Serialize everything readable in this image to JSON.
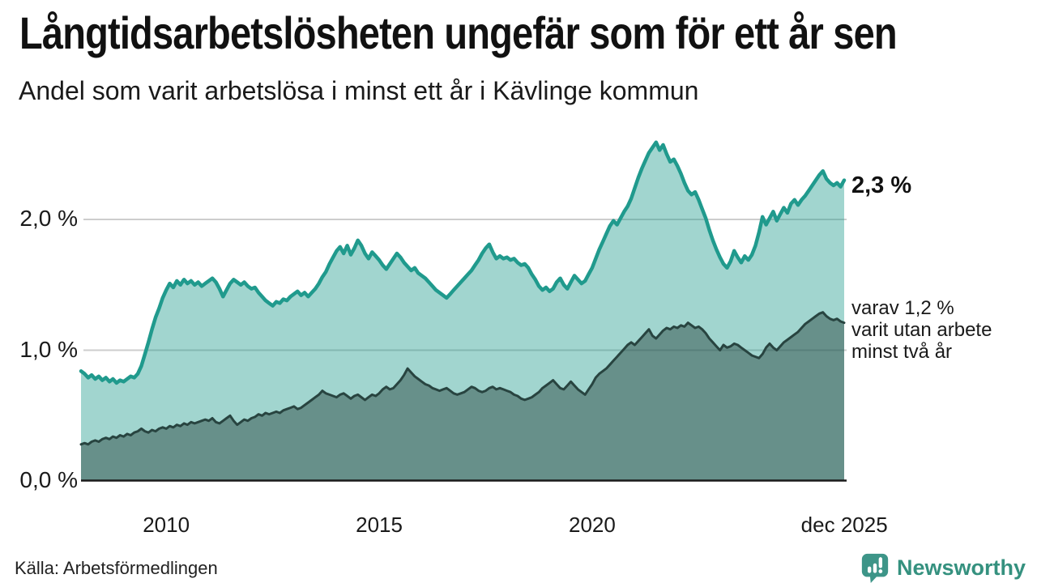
{
  "header": {
    "title": "Långtidsarbetslösheten ungefär som för ett år sen",
    "subtitle": "Andel som varit arbetslösa i minst ett år i Kävlinge kommun"
  },
  "chart_data": {
    "type": "area",
    "title": "Långtidsarbetslösheten ungefär som för ett år sen",
    "subtitle": "Andel som varit arbetslösa i minst ett år i Kävlinge kommun",
    "unit": "%",
    "xlabel": "",
    "ylabel": "",
    "grid": "horizontal",
    "x_start_year": 2008.0,
    "x_step_months": 1,
    "x_end_label": "dec 2025",
    "ylim": [
      0,
      2.7
    ],
    "y_ticks": [
      {
        "v": 0.0,
        "label": "0,0 %"
      },
      {
        "v": 1.0,
        "label": "1,0 %"
      },
      {
        "v": 2.0,
        "label": "2,0 %"
      }
    ],
    "x_ticks": [
      {
        "t": 2010.0,
        "label": "2010"
      },
      {
        "t": 2015.0,
        "label": "2015"
      },
      {
        "t": 2020.0,
        "label": "2020"
      },
      {
        "t": 2025.92,
        "label": "dec 2025"
      }
    ],
    "colors": {
      "total_line": "#209a8d",
      "total_fill": "rgba(32,154,141,0.42)",
      "twoyear_line": "#284440",
      "twoyear_fill": "rgba(38,66,62,0.47)",
      "grid": "#cdcdcd",
      "axis": "#1a1a1a"
    },
    "end_labels": {
      "total": "2,3 %",
      "subset_lines": [
        "varav 1,2 %",
        "varit utan arbete",
        "minst två år"
      ]
    },
    "series": [
      {
        "name": "Andel arbetslösa minst ett år",
        "end_value": 2.3,
        "values": [
          0.84,
          0.82,
          0.79,
          0.81,
          0.78,
          0.8,
          0.77,
          0.79,
          0.76,
          0.78,
          0.75,
          0.77,
          0.76,
          0.78,
          0.8,
          0.79,
          0.82,
          0.88,
          0.97,
          1.06,
          1.16,
          1.25,
          1.32,
          1.4,
          1.46,
          1.51,
          1.48,
          1.53,
          1.5,
          1.54,
          1.51,
          1.53,
          1.5,
          1.52,
          1.49,
          1.51,
          1.53,
          1.55,
          1.52,
          1.47,
          1.41,
          1.46,
          1.51,
          1.54,
          1.52,
          1.5,
          1.52,
          1.49,
          1.47,
          1.48,
          1.44,
          1.41,
          1.38,
          1.36,
          1.34,
          1.37,
          1.36,
          1.39,
          1.38,
          1.41,
          1.43,
          1.45,
          1.42,
          1.44,
          1.41,
          1.44,
          1.47,
          1.51,
          1.56,
          1.6,
          1.66,
          1.71,
          1.76,
          1.79,
          1.74,
          1.8,
          1.73,
          1.78,
          1.84,
          1.8,
          1.74,
          1.7,
          1.75,
          1.72,
          1.69,
          1.65,
          1.62,
          1.66,
          1.7,
          1.74,
          1.71,
          1.67,
          1.64,
          1.61,
          1.63,
          1.59,
          1.57,
          1.55,
          1.52,
          1.49,
          1.46,
          1.44,
          1.42,
          1.4,
          1.43,
          1.46,
          1.49,
          1.52,
          1.55,
          1.58,
          1.61,
          1.65,
          1.69,
          1.74,
          1.78,
          1.81,
          1.75,
          1.7,
          1.72,
          1.7,
          1.71,
          1.69,
          1.7,
          1.67,
          1.65,
          1.66,
          1.63,
          1.58,
          1.54,
          1.49,
          1.46,
          1.48,
          1.45,
          1.47,
          1.52,
          1.55,
          1.5,
          1.47,
          1.52,
          1.57,
          1.54,
          1.51,
          1.53,
          1.58,
          1.63,
          1.7,
          1.77,
          1.83,
          1.89,
          1.95,
          1.99,
          1.96,
          2.01,
          2.06,
          2.1,
          2.16,
          2.24,
          2.32,
          2.39,
          2.45,
          2.51,
          2.55,
          2.59,
          2.53,
          2.57,
          2.5,
          2.44,
          2.46,
          2.41,
          2.35,
          2.28,
          2.22,
          2.19,
          2.21,
          2.15,
          2.08,
          2.01,
          1.92,
          1.84,
          1.77,
          1.71,
          1.66,
          1.63,
          1.68,
          1.76,
          1.71,
          1.67,
          1.72,
          1.69,
          1.73,
          1.8,
          1.9,
          2.02,
          1.96,
          2.01,
          2.06,
          1.99,
          2.04,
          2.09,
          2.05,
          2.12,
          2.15,
          2.11,
          2.15,
          2.18,
          2.22,
          2.26,
          2.3,
          2.34,
          2.37,
          2.31,
          2.28,
          2.26,
          2.28,
          2.25,
          2.3
        ]
      },
      {
        "name": "varav utan arbete minst två år",
        "end_value": 1.2,
        "values": [
          0.28,
          0.29,
          0.28,
          0.3,
          0.31,
          0.3,
          0.32,
          0.33,
          0.32,
          0.34,
          0.33,
          0.35,
          0.34,
          0.36,
          0.35,
          0.37,
          0.38,
          0.4,
          0.38,
          0.37,
          0.39,
          0.38,
          0.4,
          0.41,
          0.4,
          0.42,
          0.41,
          0.43,
          0.42,
          0.44,
          0.43,
          0.45,
          0.44,
          0.45,
          0.46,
          0.47,
          0.46,
          0.48,
          0.45,
          0.44,
          0.46,
          0.48,
          0.5,
          0.46,
          0.43,
          0.45,
          0.47,
          0.46,
          0.48,
          0.49,
          0.51,
          0.5,
          0.52,
          0.51,
          0.52,
          0.53,
          0.52,
          0.54,
          0.55,
          0.56,
          0.57,
          0.55,
          0.56,
          0.58,
          0.6,
          0.62,
          0.64,
          0.66,
          0.69,
          0.67,
          0.66,
          0.65,
          0.64,
          0.66,
          0.67,
          0.65,
          0.63,
          0.65,
          0.66,
          0.64,
          0.62,
          0.64,
          0.66,
          0.65,
          0.67,
          0.7,
          0.72,
          0.7,
          0.71,
          0.74,
          0.77,
          0.81,
          0.86,
          0.83,
          0.8,
          0.78,
          0.76,
          0.74,
          0.73,
          0.71,
          0.7,
          0.69,
          0.7,
          0.71,
          0.69,
          0.67,
          0.66,
          0.67,
          0.68,
          0.7,
          0.72,
          0.71,
          0.69,
          0.68,
          0.69,
          0.71,
          0.72,
          0.7,
          0.71,
          0.7,
          0.69,
          0.68,
          0.66,
          0.65,
          0.63,
          0.62,
          0.63,
          0.64,
          0.66,
          0.68,
          0.71,
          0.73,
          0.75,
          0.77,
          0.74,
          0.71,
          0.7,
          0.73,
          0.76,
          0.73,
          0.7,
          0.68,
          0.66,
          0.7,
          0.74,
          0.79,
          0.82,
          0.84,
          0.86,
          0.89,
          0.92,
          0.95,
          0.98,
          1.01,
          1.04,
          1.06,
          1.04,
          1.07,
          1.1,
          1.13,
          1.16,
          1.11,
          1.09,
          1.12,
          1.15,
          1.17,
          1.16,
          1.18,
          1.17,
          1.19,
          1.18,
          1.21,
          1.19,
          1.17,
          1.18,
          1.16,
          1.13,
          1.09,
          1.06,
          1.03,
          1.0,
          1.04,
          1.02,
          1.03,
          1.05,
          1.04,
          1.02,
          1.0,
          0.98,
          0.96,
          0.95,
          0.94,
          0.97,
          1.02,
          1.05,
          1.02,
          1.0,
          1.03,
          1.06,
          1.08,
          1.1,
          1.12,
          1.14,
          1.17,
          1.2,
          1.22,
          1.24,
          1.26,
          1.28,
          1.29,
          1.26,
          1.24,
          1.23,
          1.24,
          1.22,
          1.21
        ]
      }
    ]
  },
  "footer": {
    "source": "Källa: Arbetsförmedlingen",
    "brand": "Newsworthy",
    "brand_color": "#35917f",
    "brand_icon_color": "#3d9588"
  }
}
